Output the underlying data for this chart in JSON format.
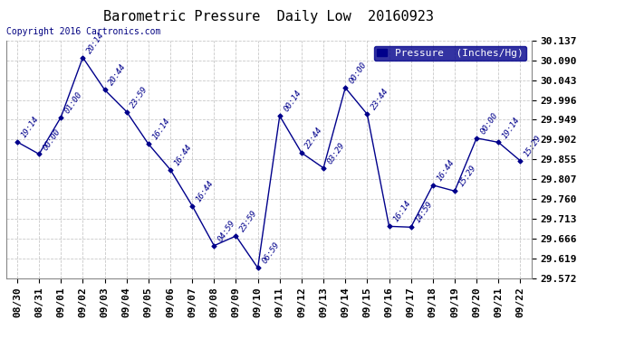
{
  "title": "Barometric Pressure  Daily Low  20160923",
  "copyright": "Copyright 2016 Cartronics.com",
  "legend_label": "Pressure  (Inches/Hg)",
  "ylim": [
    29.572,
    30.137
  ],
  "yticks": [
    29.572,
    29.619,
    29.666,
    29.713,
    29.76,
    29.807,
    29.855,
    29.902,
    29.949,
    29.996,
    30.043,
    30.09,
    30.137
  ],
  "background_color": "#ffffff",
  "grid_color": "#bbbbbb",
  "line_color": "#00008b",
  "point_color": "#00008b",
  "title_color": "#000000",
  "data": [
    {
      "date": "08/30",
      "time": "19:14",
      "value": 29.896
    },
    {
      "date": "08/31",
      "time": "00:00",
      "value": 29.867
    },
    {
      "date": "09/01",
      "time": "01:00",
      "value": 29.955
    },
    {
      "date": "09/02",
      "time": "20:14",
      "value": 30.097
    },
    {
      "date": "09/03",
      "time": "20:44",
      "value": 30.02
    },
    {
      "date": "09/04",
      "time": "23:59",
      "value": 29.968
    },
    {
      "date": "09/05",
      "time": "16:14",
      "value": 29.891
    },
    {
      "date": "09/06",
      "time": "16:44",
      "value": 29.83
    },
    {
      "date": "09/07",
      "time": "16:44",
      "value": 29.744
    },
    {
      "date": "09/08",
      "time": "04:59",
      "value": 29.649
    },
    {
      "date": "09/09",
      "time": "23:59",
      "value": 29.672
    },
    {
      "date": "09/10",
      "time": "06:59",
      "value": 29.596
    },
    {
      "date": "09/11",
      "time": "00:14",
      "value": 29.958
    },
    {
      "date": "09/12",
      "time": "22:44",
      "value": 29.87
    },
    {
      "date": "09/13",
      "time": "03:29",
      "value": 29.834
    },
    {
      "date": "09/14",
      "time": "00:00",
      "value": 30.025
    },
    {
      "date": "09/15",
      "time": "23:44",
      "value": 29.962
    },
    {
      "date": "09/16",
      "time": "16:14",
      "value": 29.695
    },
    {
      "date": "09/17",
      "time": "14:59",
      "value": 29.693
    },
    {
      "date": "09/18",
      "time": "16:44",
      "value": 29.793
    },
    {
      "date": "09/19",
      "time": "15:29",
      "value": 29.779
    },
    {
      "date": "09/20",
      "time": "00:00",
      "value": 29.905
    },
    {
      "date": "09/21",
      "time": "19:14",
      "value": 29.895
    },
    {
      "date": "09/22",
      "time": "15:29",
      "value": 29.851
    }
  ],
  "title_fontsize": 11,
  "tick_fontsize": 8,
  "annot_fontsize": 6.5,
  "legend_fontsize": 8,
  "copyright_fontsize": 7
}
